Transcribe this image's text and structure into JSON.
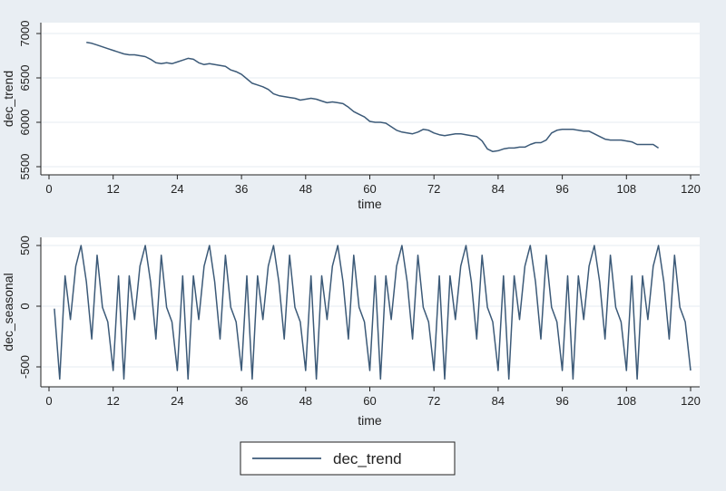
{
  "colors": {
    "outer_background": "#e9eef3",
    "plot_background": "#ffffff",
    "gridline": "#e6ebf0",
    "series_line": "#3c5a78",
    "axis": "#222222"
  },
  "chart_data": [
    {
      "type": "line",
      "xlabel": "time",
      "ylabel": "dec_trend",
      "xlim": [
        0,
        120
      ],
      "ylim": [
        5500,
        7000
      ],
      "xticks": [
        0,
        12,
        24,
        36,
        48,
        60,
        72,
        84,
        96,
        108,
        120
      ],
      "yticks": [
        5500,
        6000,
        6500,
        7000
      ],
      "grid": "horizontal",
      "series": [
        {
          "name": "dec_trend",
          "x": [
            7,
            8,
            9,
            10,
            11,
            12,
            13,
            14,
            15,
            16,
            17,
            18,
            19,
            20,
            21,
            22,
            23,
            24,
            25,
            26,
            27,
            28,
            29,
            30,
            31,
            32,
            33,
            34,
            35,
            36,
            37,
            38,
            39,
            40,
            41,
            42,
            43,
            44,
            45,
            46,
            47,
            48,
            49,
            50,
            51,
            52,
            53,
            54,
            55,
            56,
            57,
            58,
            59,
            60,
            61,
            62,
            63,
            64,
            65,
            66,
            67,
            68,
            69,
            70,
            71,
            72,
            73,
            74,
            75,
            76,
            77,
            78,
            79,
            80,
            81,
            82,
            83,
            84,
            85,
            86,
            87,
            88,
            89,
            90,
            91,
            92,
            93,
            94,
            95,
            96,
            97,
            98,
            99,
            100,
            101,
            102,
            103,
            104,
            105,
            106,
            107,
            108,
            109,
            110,
            111,
            112,
            113,
            114
          ],
          "values": [
            6900,
            6890,
            6870,
            6850,
            6830,
            6810,
            6790,
            6770,
            6760,
            6760,
            6750,
            6740,
            6710,
            6670,
            6660,
            6670,
            6660,
            6680,
            6700,
            6720,
            6710,
            6670,
            6650,
            6660,
            6650,
            6640,
            6630,
            6590,
            6570,
            6540,
            6490,
            6440,
            6420,
            6400,
            6370,
            6320,
            6300,
            6290,
            6280,
            6270,
            6250,
            6260,
            6270,
            6260,
            6240,
            6220,
            6230,
            6220,
            6210,
            6170,
            6120,
            6090,
            6060,
            6010,
            6000,
            6000,
            5990,
            5950,
            5910,
            5890,
            5880,
            5870,
            5890,
            5920,
            5910,
            5880,
            5860,
            5850,
            5860,
            5870,
            5870,
            5860,
            5850,
            5840,
            5790,
            5700,
            5670,
            5680,
            5700,
            5710,
            5710,
            5720,
            5720,
            5750,
            5770,
            5770,
            5800,
            5880,
            5910,
            5920,
            5920,
            5920,
            5910,
            5900,
            5900,
            5870,
            5840,
            5810,
            5800,
            5800,
            5800,
            5790,
            5780,
            5750,
            5750,
            5750,
            5750,
            5710
          ]
        }
      ]
    },
    {
      "type": "line",
      "xlabel": "time",
      "ylabel": "dec_seasonal",
      "xlim": [
        0,
        120
      ],
      "ylim": [
        -600,
        500
      ],
      "xticks": [
        0,
        12,
        24,
        36,
        48,
        60,
        72,
        84,
        96,
        108,
        120
      ],
      "yticks": [
        -500,
        0,
        500
      ],
      "grid": "horizontal",
      "series": [
        {
          "name": "dec_seasonal",
          "x": [
            1,
            2,
            3,
            4,
            5,
            6,
            7,
            8,
            9,
            10,
            11,
            12,
            13,
            14,
            15,
            16,
            17,
            18,
            19,
            20,
            21,
            22,
            23,
            24,
            25,
            26,
            27,
            28,
            29,
            30,
            31,
            32,
            33,
            34,
            35,
            36,
            37,
            38,
            39,
            40,
            41,
            42,
            43,
            44,
            45,
            46,
            47,
            48,
            49,
            50,
            51,
            52,
            53,
            54,
            55,
            56,
            57,
            58,
            59,
            60,
            61,
            62,
            63,
            64,
            65,
            66,
            67,
            68,
            69,
            70,
            71,
            72,
            73,
            74,
            75,
            76,
            77,
            78,
            79,
            80,
            81,
            82,
            83,
            84,
            85,
            86,
            87,
            88,
            89,
            90,
            91,
            92,
            93,
            94,
            95,
            96,
            97,
            98,
            99,
            100,
            101,
            102,
            103,
            104,
            105,
            106,
            107,
            108,
            109,
            110,
            111,
            112,
            113,
            114,
            115,
            116,
            117,
            118,
            119,
            120
          ],
          "values": [
            -20,
            -600,
            250,
            -110,
            330,
            500,
            200,
            -270,
            420,
            -10,
            -130,
            -530,
            250,
            -600,
            250,
            -110,
            330,
            500,
            200,
            -270,
            420,
            -10,
            -130,
            -530,
            250,
            -600,
            250,
            -110,
            330,
            500,
            200,
            -270,
            420,
            -10,
            -130,
            -530,
            250,
            -600,
            250,
            -110,
            330,
            500,
            200,
            -270,
            420,
            -10,
            -130,
            -530,
            250,
            -600,
            250,
            -110,
            330,
            500,
            200,
            -270,
            420,
            -10,
            -130,
            -530,
            250,
            -600,
            250,
            -110,
            330,
            500,
            200,
            -270,
            420,
            -10,
            -130,
            -530,
            250,
            -600,
            250,
            -110,
            330,
            500,
            200,
            -270,
            420,
            -10,
            -130,
            -530,
            250,
            -600,
            250,
            -110,
            330,
            500,
            200,
            -270,
            420,
            -10,
            -130,
            -530,
            250,
            -600,
            250,
            -110,
            330,
            500,
            200,
            -270,
            420,
            -10,
            -130,
            -530,
            250,
            -600,
            250,
            -110,
            330,
            500,
            200,
            -270,
            420,
            -10,
            -130,
            -530
          ]
        }
      ]
    }
  ],
  "legend": {
    "placement": "bottom-center",
    "entries": [
      "dec_trend"
    ]
  }
}
